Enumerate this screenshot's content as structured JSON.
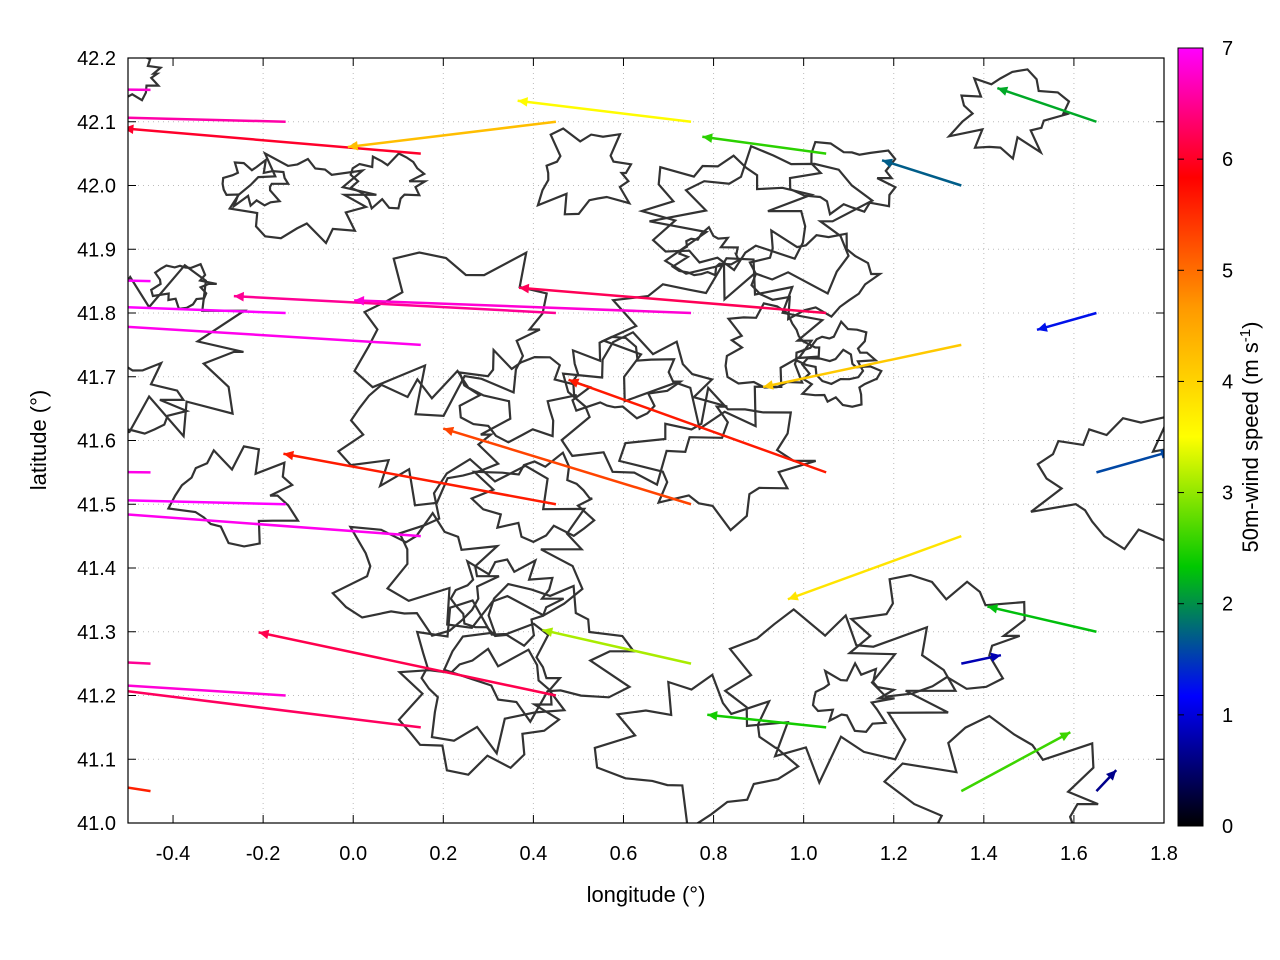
{
  "chart_data": {
    "type": "vector-field",
    "xlabel": "longitude (°)",
    "ylabel": "latitude (°)",
    "colorbar_label": "50m-wind speed (m s",
    "colorbar_label_sup": "-1",
    "colorbar_label_tail": ")",
    "xlim": [
      -0.5,
      1.8
    ],
    "ylim": [
      41.0,
      42.2
    ],
    "x_ticks": [
      -0.4,
      -0.2,
      0.0,
      0.2,
      0.4,
      0.6,
      0.8,
      1.0,
      1.2,
      1.4,
      1.6,
      1.8
    ],
    "x_tick_labels": [
      "-0.4",
      "-0.2",
      "0.0",
      "0.2",
      "0.4",
      "0.6",
      "0.8",
      "1.0",
      "1.2",
      "1.4",
      "1.6",
      "1.8"
    ],
    "y_ticks": [
      41.0,
      41.1,
      41.2,
      41.3,
      41.4,
      41.5,
      41.6,
      41.7,
      41.8,
      41.9,
      42.0,
      42.1,
      42.2
    ],
    "y_tick_labels": [
      "41.0",
      "41.1",
      "41.2",
      "41.3",
      "41.4",
      "41.5",
      "41.6",
      "41.7",
      "41.8",
      "41.9",
      "42.0",
      "42.1",
      "42.2"
    ],
    "colorbar_range": [
      0,
      7
    ],
    "colorbar_ticks": [
      0,
      1,
      2,
      3,
      4,
      5,
      6,
      7
    ],
    "colorbar_tick_labels": [
      "0",
      "1",
      "2",
      "3",
      "4",
      "5",
      "6",
      "7"
    ],
    "colormap": [
      "#000000",
      "#0000ff",
      "#00c800",
      "#ffff00",
      "#ff9900",
      "#ff0000",
      "#ff00ff"
    ],
    "contour_color": "#333333",
    "grid": "dotted",
    "vectors": [
      {
        "lon": -0.45,
        "lat": 42.15,
        "u": -6.8,
        "v": 0.1
      },
      {
        "lon": -0.45,
        "lat": 41.85,
        "u": -7.0,
        "v": 0.2
      },
      {
        "lon": -0.45,
        "lat": 41.55,
        "u": -6.9,
        "v": 0.1
      },
      {
        "lon": -0.45,
        "lat": 41.25,
        "u": -6.5,
        "v": 0.4
      },
      {
        "lon": -0.45,
        "lat": 41.05,
        "u": -5.5,
        "v": 1.0
      },
      {
        "lon": -0.15,
        "lat": 42.1,
        "u": -6.6,
        "v": 0.2
      },
      {
        "lon": -0.15,
        "lat": 41.8,
        "u": -7.0,
        "v": 0.3
      },
      {
        "lon": -0.15,
        "lat": 41.5,
        "u": -7.0,
        "v": 0.2
      },
      {
        "lon": -0.15,
        "lat": 41.2,
        "u": -6.8,
        "v": 0.5
      },
      {
        "lon": 0.15,
        "lat": 42.05,
        "u": -6.0,
        "v": 0.6
      },
      {
        "lon": 0.15,
        "lat": 41.75,
        "u": -6.9,
        "v": 0.5
      },
      {
        "lon": 0.15,
        "lat": 41.45,
        "u": -6.9,
        "v": 0.6
      },
      {
        "lon": 0.15,
        "lat": 41.15,
        "u": -6.2,
        "v": 0.9
      },
      {
        "lon": 0.45,
        "lat": 42.1,
        "u": -4.2,
        "v": -0.6
      },
      {
        "lon": 0.45,
        "lat": 41.8,
        "u": -6.5,
        "v": 0.4
      },
      {
        "lon": 0.45,
        "lat": 41.5,
        "u": -5.5,
        "v": 1.2
      },
      {
        "lon": 0.45,
        "lat": 41.2,
        "u": -6.0,
        "v": 1.5
      },
      {
        "lon": 0.75,
        "lat": 42.1,
        "u": -3.5,
        "v": 0.5
      },
      {
        "lon": 0.75,
        "lat": 41.8,
        "u": -6.8,
        "v": 0.3
      },
      {
        "lon": 0.75,
        "lat": 41.5,
        "u": -5.0,
        "v": 1.8
      },
      {
        "lon": 0.75,
        "lat": 41.25,
        "u": -3.0,
        "v": 0.8
      },
      {
        "lon": 1.05,
        "lat": 42.05,
        "u": -2.5,
        "v": 0.4
      },
      {
        "lon": 1.05,
        "lat": 41.8,
        "u": -6.2,
        "v": 0.6
      },
      {
        "lon": 1.05,
        "lat": 41.55,
        "u": -5.2,
        "v": 2.2
      },
      {
        "lon": 1.05,
        "lat": 41.15,
        "u": -2.4,
        "v": 0.3
      },
      {
        "lon": 1.35,
        "lat": 42.0,
        "u": -1.6,
        "v": 0.6
      },
      {
        "lon": 1.35,
        "lat": 41.75,
        "u": -4.0,
        "v": -1.0
      },
      {
        "lon": 1.35,
        "lat": 41.45,
        "u": -3.5,
        "v": -1.5
      },
      {
        "lon": 1.35,
        "lat": 41.25,
        "u": 0.8,
        "v": 0.2
      },
      {
        "lon": 1.35,
        "lat": 41.05,
        "u": 2.2,
        "v": 1.4
      },
      {
        "lon": 1.65,
        "lat": 42.1,
        "u": -2.0,
        "v": 0.8
      },
      {
        "lon": 1.65,
        "lat": 41.8,
        "u": -1.2,
        "v": -0.4
      },
      {
        "lon": 1.65,
        "lat": 41.55,
        "u": 1.5,
        "v": 0.5
      },
      {
        "lon": 1.65,
        "lat": 41.3,
        "u": -2.2,
        "v": 0.6
      },
      {
        "lon": 1.65,
        "lat": 41.05,
        "u": 0.4,
        "v": 0.5
      }
    ]
  }
}
